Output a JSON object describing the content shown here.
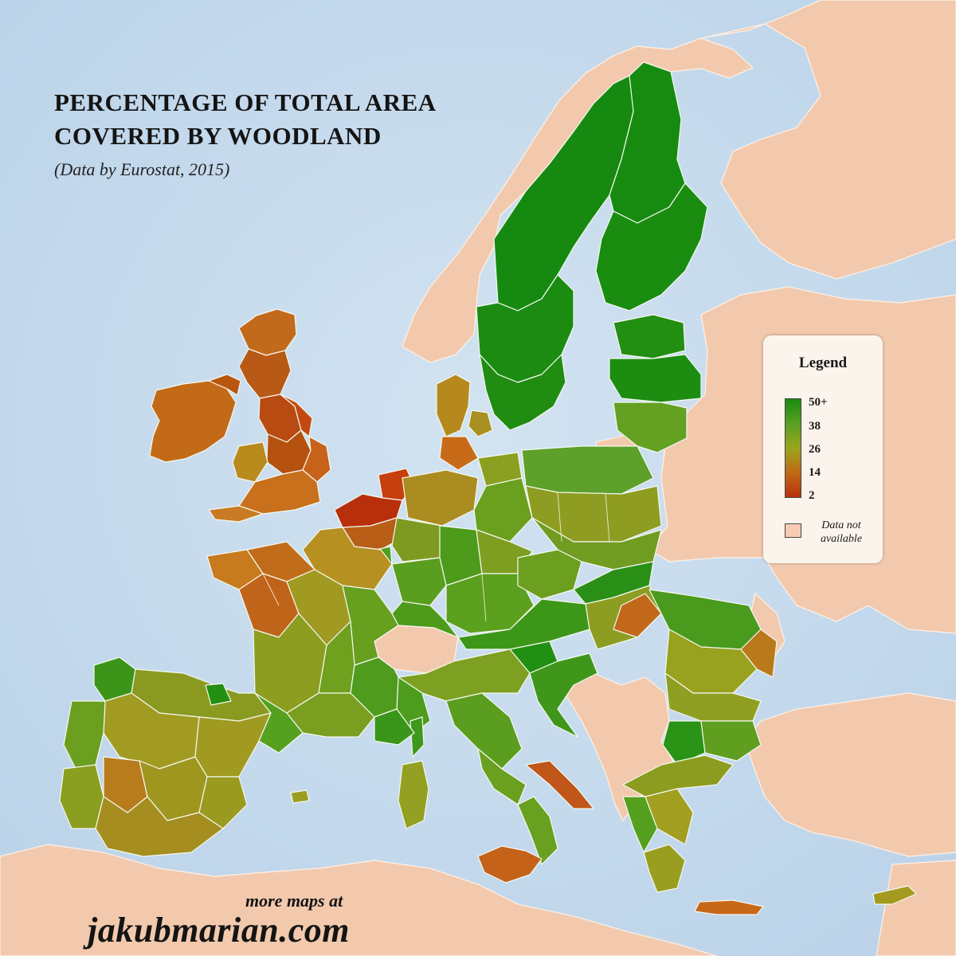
{
  "title": {
    "line1": "PERCENTAGE OF TOTAL AREA",
    "line2": "COVERED BY WOODLAND",
    "subtitle": "(Data by Eurostat, 2015)"
  },
  "legend": {
    "title": "Legend",
    "scale_min": 2,
    "scale_max": 50,
    "ticks": [
      "50+",
      "38",
      "26",
      "14",
      "2"
    ],
    "gradient_colors": [
      "#1a8a12",
      "#58a022",
      "#9aa51f",
      "#c06a17",
      "#b8300d"
    ],
    "na_label": "Data not available",
    "na_color": "#f6cdb4"
  },
  "credit": {
    "line1": "more maps at",
    "line2": "jakubmarian.com"
  },
  "colors": {
    "sea": "#c9dced",
    "no_data_land": "#f2c9ad"
  }
}
